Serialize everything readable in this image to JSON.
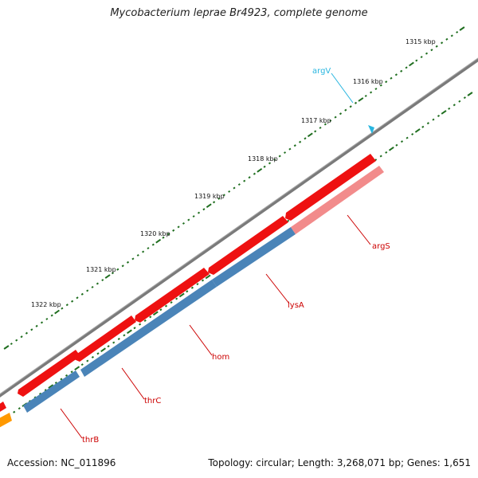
{
  "title": "Mycobacterium leprae Br4923, complete genome",
  "footer": {
    "accession": "Accession: NC_011896",
    "stats": "Topology: circular; Length: 3,268,071 bp; Genes: 1,651"
  },
  "ruler_labels": [
    "1315 kbp",
    "1316 kbp",
    "1317 kbp",
    "1318 kbp",
    "1319 kbp",
    "1320 kbp",
    "1321 kbp",
    "1322 kbp"
  ],
  "genes": [
    {
      "name": "argV",
      "strand": "forward",
      "color": "#29b6e0"
    },
    {
      "name": "argS",
      "strand": "reverse",
      "color": "#cc0000"
    },
    {
      "name": "lysA",
      "strand": "reverse",
      "color": "#cc0000"
    },
    {
      "name": "hom",
      "strand": "reverse",
      "color": "#cc0000"
    },
    {
      "name": "thrC",
      "strand": "reverse",
      "color": "#cc0000"
    },
    {
      "name": "thrB",
      "strand": "reverse",
      "color": "#cc0000"
    }
  ],
  "colors": {
    "backbone": "#7a7a7a",
    "cds_red": "#ee1111",
    "cds_pink": "#f28b8b",
    "gene_blue": "#4a84b8",
    "tick_green": "#1f6e1f",
    "orange": "#ff9900",
    "label_red": "#cc0000",
    "label_cyan": "#29b6e0"
  }
}
